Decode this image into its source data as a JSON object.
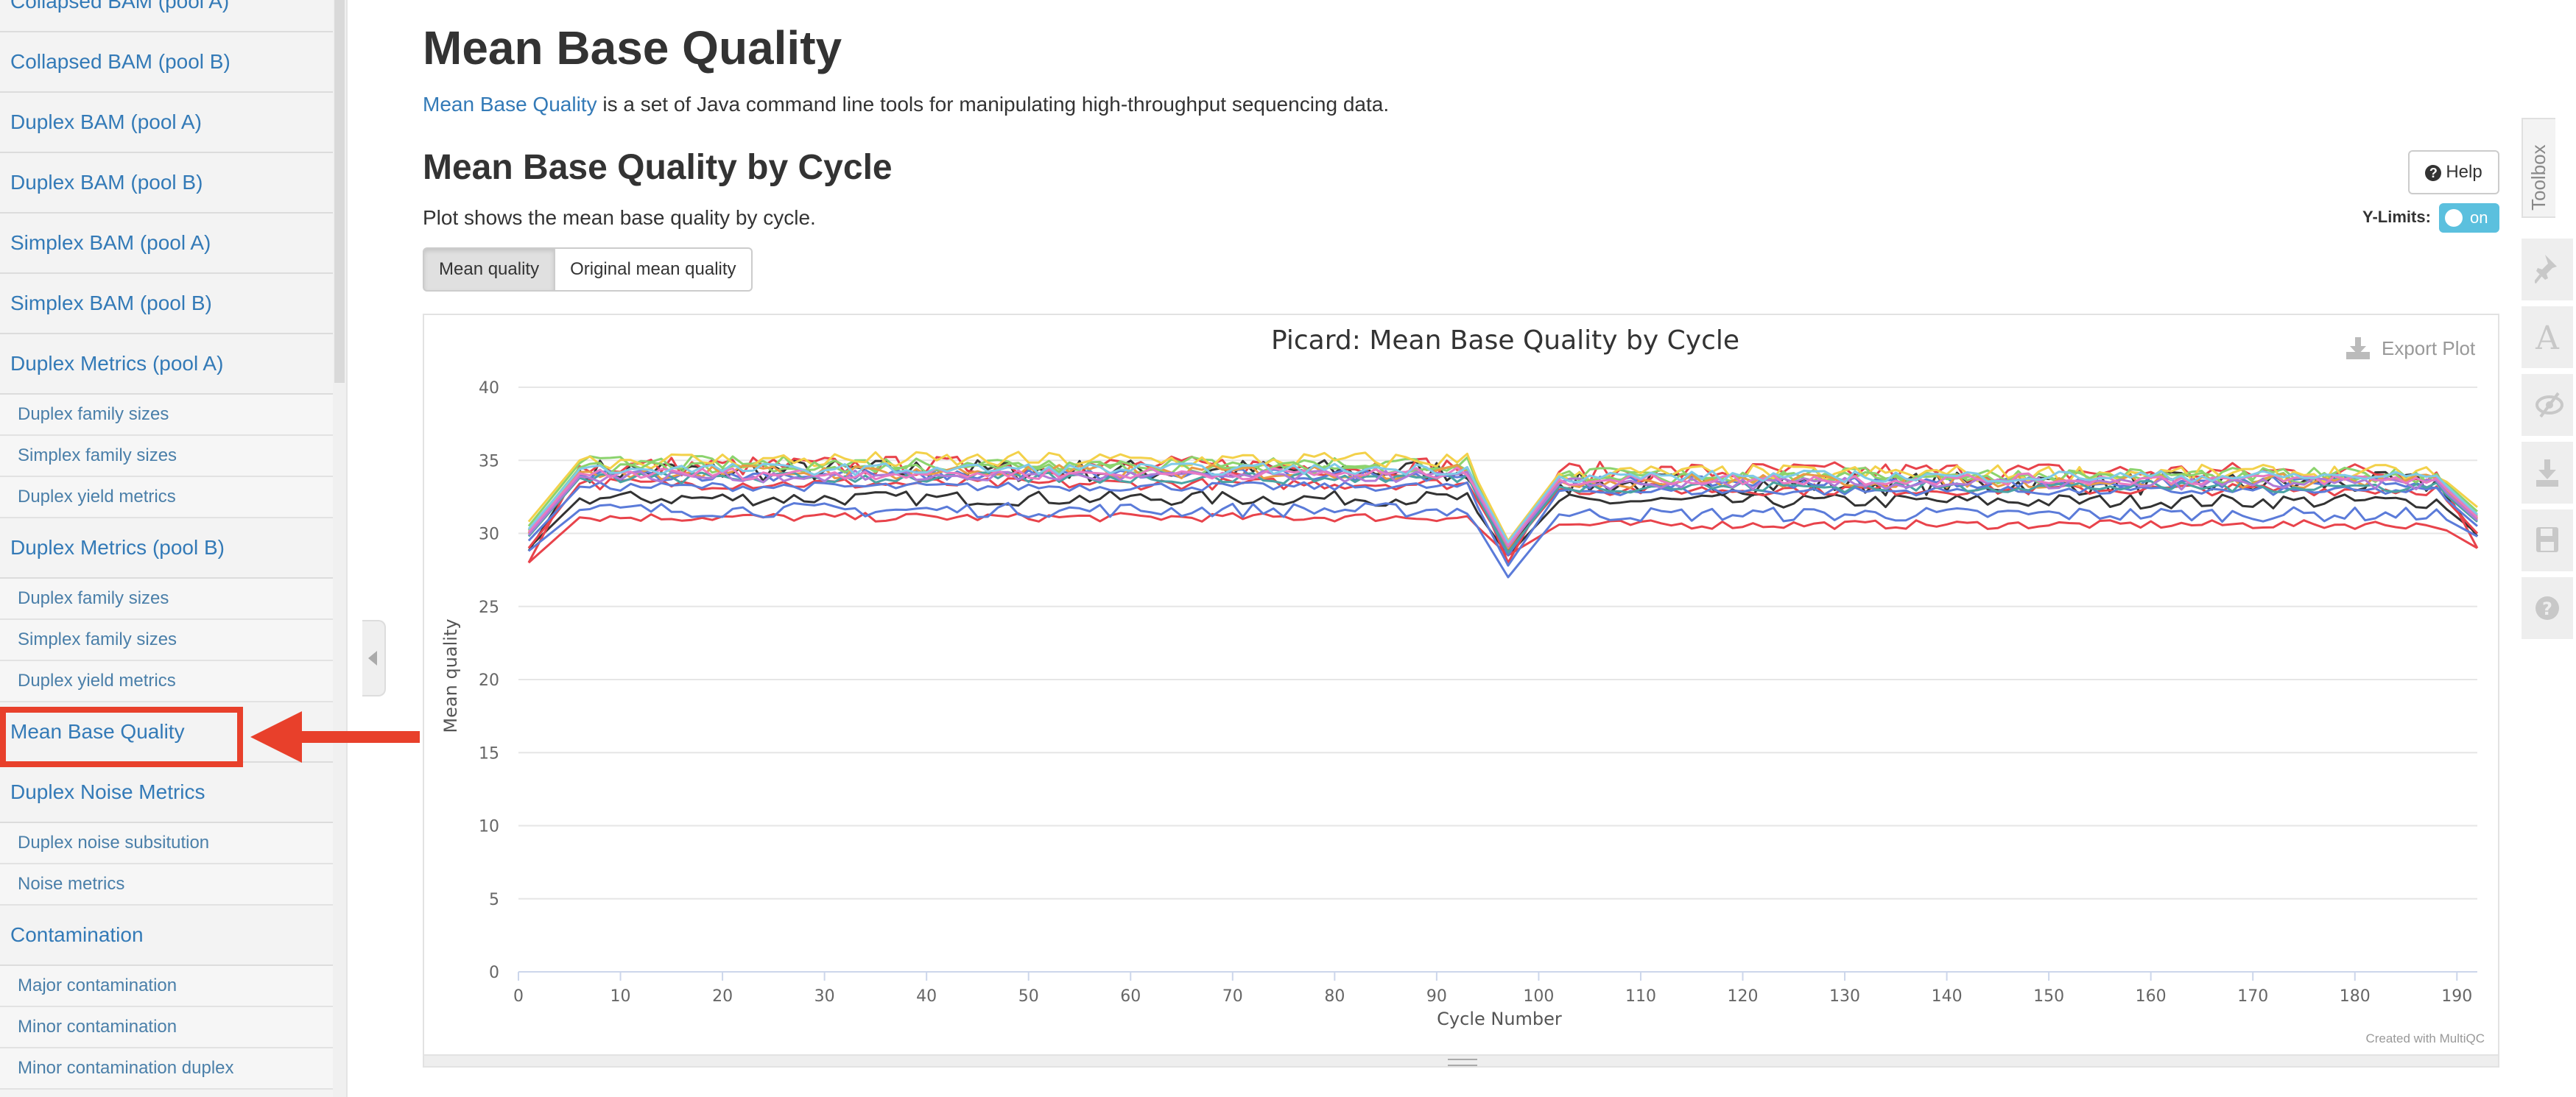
{
  "sidebar": {
    "items": [
      {
        "label": "Collapsed BAM (pool A)",
        "level": 1
      },
      {
        "label": "Collapsed BAM (pool B)",
        "level": 1
      },
      {
        "label": "Duplex BAM (pool A)",
        "level": 1
      },
      {
        "label": "Duplex BAM (pool B)",
        "level": 1
      },
      {
        "label": "Simplex BAM (pool A)",
        "level": 1
      },
      {
        "label": "Simplex BAM (pool B)",
        "level": 1
      },
      {
        "label": "Duplex Metrics (pool A)",
        "level": 1
      },
      {
        "label": "Duplex family sizes",
        "level": 2
      },
      {
        "label": "Simplex family sizes",
        "level": 2
      },
      {
        "label": "Duplex yield metrics",
        "level": 2
      },
      {
        "label": "Duplex Metrics (pool B)",
        "level": 1
      },
      {
        "label": "Duplex family sizes",
        "level": 2
      },
      {
        "label": "Simplex family sizes",
        "level": 2
      },
      {
        "label": "Duplex yield metrics",
        "level": 2
      },
      {
        "label": "Mean Base Quality",
        "level": 1
      },
      {
        "label": "Duplex Noise Metrics",
        "level": 1
      },
      {
        "label": "Duplex noise subsitution",
        "level": 2
      },
      {
        "label": "Noise metrics",
        "level": 2
      },
      {
        "label": "Contamination",
        "level": 1
      },
      {
        "label": "Major contamination",
        "level": 2
      },
      {
        "label": "Minor contamination",
        "level": 2
      },
      {
        "label": "Minor contamination duplex",
        "level": 2
      }
    ],
    "highlighted": "Mean Base Quality"
  },
  "main": {
    "title": "Mean Base Quality",
    "intro_link": "Mean Base Quality",
    "intro_text": " is a set of Java command line tools for manipulating high-throughput sequencing data.",
    "section_title": "Mean Base Quality by Cycle",
    "section_desc": "Plot shows the mean base quality by cycle.",
    "buttons": {
      "mean_quality": "Mean quality",
      "original_mean_quality": "Original mean quality",
      "active": "Mean quality"
    },
    "help_label": "Help",
    "ylimits_label": "Y-Limits:",
    "ylimits_state": "on",
    "export_label": "Export Plot",
    "credit": "Created with MultiQC"
  },
  "toolbox": {
    "label": "Toolbox",
    "icons": [
      "pin-icon",
      "font-icon",
      "eye-slash-icon",
      "download-icon",
      "save-icon",
      "help-circle-icon"
    ]
  },
  "colors": {
    "accent": "#337ab7",
    "highlight": "#e8402b",
    "toggle": "#5bc0de"
  },
  "chart_data": {
    "type": "line",
    "title": "Picard: Mean Base Quality by Cycle",
    "xlabel": "Cycle Number",
    "ylabel": "Mean quality",
    "xlim": [
      0,
      192
    ],
    "ylim": [
      0,
      40
    ],
    "x_ticks": [
      0,
      10,
      20,
      30,
      40,
      50,
      60,
      70,
      80,
      90,
      100,
      110,
      120,
      130,
      140,
      150,
      160,
      170,
      180,
      190
    ],
    "y_ticks": [
      0,
      5,
      10,
      15,
      20,
      25,
      30,
      35,
      40
    ],
    "grid": true,
    "legend": "none",
    "series": [
      {
        "color": "#333333",
        "plateau1": 34.3,
        "plateau2": 33.4,
        "start": 28.8,
        "dip": 28.8,
        "noise": 0.8
      },
      {
        "color": "#333333",
        "plateau1": 32.4,
        "plateau2": 32.2,
        "start": 29.0,
        "dip": 28.5,
        "noise": 0.5
      },
      {
        "color": "#e8434b",
        "plateau1": 34.6,
        "plateau2": 34.2,
        "start": 28.0,
        "dip": 28.0,
        "noise": 0.7
      },
      {
        "color": "#e8434b",
        "plateau1": 31.1,
        "plateau2": 30.6,
        "start": 28.0,
        "dip": 28.5,
        "noise": 0.3
      },
      {
        "color": "#e8434b",
        "plateau1": 33.4,
        "plateau2": 33.0,
        "start": 29.0,
        "dip": 28.8,
        "noise": 0.4
      },
      {
        "color": "#5b7bd9",
        "plateau1": 31.6,
        "plateau2": 31.3,
        "start": 28.8,
        "dip": 27.0,
        "noise": 0.5
      },
      {
        "color": "#5b7bd9",
        "plateau1": 33.2,
        "plateau2": 32.9,
        "start": 29.5,
        "dip": 27.8,
        "noise": 0.3
      },
      {
        "color": "#5b7bd9",
        "plateau1": 34.0,
        "plateau2": 33.5,
        "start": 30.0,
        "dip": 28.5,
        "noise": 0.4
      },
      {
        "color": "#8bd36d",
        "plateau1": 34.8,
        "plateau2": 34.0,
        "start": 30.5,
        "dip": 29.0,
        "noise": 0.5
      },
      {
        "color": "#f3d14a",
        "plateau1": 35.0,
        "plateau2": 34.1,
        "start": 30.8,
        "dip": 29.5,
        "noise": 0.6
      },
      {
        "color": "#8bd36d",
        "plateau1": 34.5,
        "plateau2": 33.8,
        "start": 30.2,
        "dip": 29.3,
        "noise": 0.4
      },
      {
        "color": "#e89b45",
        "plateau1": 34.2,
        "plateau2": 33.6,
        "start": 30.0,
        "dip": 29.0,
        "noise": 0.5
      },
      {
        "color": "#4aa3a3",
        "plateau1": 33.8,
        "plateau2": 33.2,
        "start": 29.8,
        "dip": 28.7,
        "noise": 0.4
      },
      {
        "color": "#b07ad6",
        "plateau1": 33.9,
        "plateau2": 33.4,
        "start": 29.9,
        "dip": 29.1,
        "noise": 0.4
      },
      {
        "color": "#e87ac2",
        "plateau1": 34.1,
        "plateau2": 33.7,
        "start": 30.1,
        "dip": 29.2,
        "noise": 0.4
      },
      {
        "color": "#7fc9e8",
        "plateau1": 34.4,
        "plateau2": 33.9,
        "start": 30.3,
        "dip": 29.4,
        "noise": 0.4
      }
    ]
  }
}
